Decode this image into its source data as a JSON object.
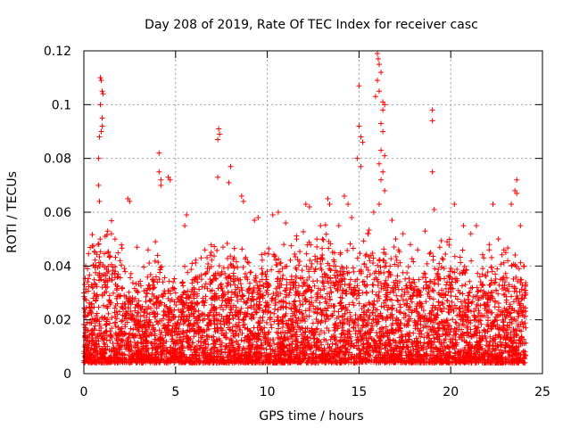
{
  "chart_data": {
    "type": "scatter",
    "title": "Day 208 of 2019, Rate Of TEC Index for receiver casc",
    "xlabel": "GPS time / hours",
    "ylabel": "ROTI / TECUs",
    "xlim": [
      0,
      25
    ],
    "ylim": [
      0,
      0.12
    ],
    "xticks": [
      0,
      5,
      10,
      15,
      20,
      25
    ],
    "yticks": [
      0,
      0.02,
      0.04,
      0.06,
      0.08,
      0.1,
      0.12
    ],
    "grid": true,
    "marker": "+",
    "color": "#ff0000",
    "series": [
      {
        "values_note_removed": true,
        "points": [
          [
            0.9,
            0.11
          ],
          [
            0.95,
            0.109
          ],
          [
            1.0,
            0.105
          ],
          [
            1.05,
            0.104
          ],
          [
            0.9,
            0.1
          ],
          [
            1.0,
            0.095
          ],
          [
            1.0,
            0.092
          ],
          [
            0.95,
            0.09
          ],
          [
            0.85,
            0.088
          ],
          [
            0.8,
            0.08
          ],
          [
            0.8,
            0.07
          ],
          [
            0.85,
            0.064
          ],
          [
            4.1,
            0.082
          ],
          [
            4.1,
            0.075
          ],
          [
            4.2,
            0.072
          ],
          [
            4.6,
            0.073
          ],
          [
            4.7,
            0.072
          ],
          [
            4.2,
            0.07
          ],
          [
            7.35,
            0.091
          ],
          [
            7.4,
            0.089
          ],
          [
            7.3,
            0.087
          ],
          [
            7.3,
            0.073
          ],
          [
            8.0,
            0.077
          ],
          [
            7.9,
            0.071
          ],
          [
            8.6,
            0.066
          ],
          [
            8.7,
            0.064
          ],
          [
            2.4,
            0.065
          ],
          [
            2.5,
            0.064
          ],
          [
            5.6,
            0.059
          ],
          [
            5.5,
            0.055
          ],
          [
            15.0,
            0.107
          ],
          [
            15.0,
            0.092
          ],
          [
            15.1,
            0.088
          ],
          [
            15.2,
            0.086
          ],
          [
            14.9,
            0.08
          ],
          [
            15.1,
            0.077
          ],
          [
            16.0,
            0.119
          ],
          [
            16.05,
            0.117
          ],
          [
            16.1,
            0.115
          ],
          [
            16.2,
            0.112
          ],
          [
            16.0,
            0.109
          ],
          [
            16.1,
            0.105
          ],
          [
            15.9,
            0.103
          ],
          [
            16.3,
            0.101
          ],
          [
            16.4,
            0.1
          ],
          [
            16.3,
            0.098
          ],
          [
            16.2,
            0.093
          ],
          [
            16.3,
            0.09
          ],
          [
            16.2,
            0.083
          ],
          [
            16.4,
            0.081
          ],
          [
            16.1,
            0.078
          ],
          [
            16.3,
            0.075
          ],
          [
            16.2,
            0.072
          ],
          [
            16.4,
            0.068
          ],
          [
            16.1,
            0.063
          ],
          [
            15.8,
            0.06
          ],
          [
            19.0,
            0.098
          ],
          [
            19.0,
            0.094
          ],
          [
            19.0,
            0.075
          ],
          [
            19.1,
            0.061
          ],
          [
            20.2,
            0.063
          ],
          [
            22.3,
            0.063
          ],
          [
            23.3,
            0.063
          ],
          [
            23.6,
            0.072
          ],
          [
            23.5,
            0.068
          ],
          [
            23.6,
            0.067
          ],
          [
            12.1,
            0.063
          ],
          [
            12.3,
            0.062
          ],
          [
            13.3,
            0.065
          ],
          [
            13.4,
            0.063
          ],
          [
            11.0,
            0.056
          ],
          [
            10.3,
            0.059
          ],
          [
            6.6,
            0.046
          ],
          [
            3.5,
            0.046
          ],
          [
            9.3,
            0.057
          ],
          [
            9.5,
            0.058
          ],
          [
            10.6,
            0.06
          ],
          [
            14.2,
            0.066
          ],
          [
            14.4,
            0.063
          ],
          [
            17.4,
            0.052
          ],
          [
            17.8,
            0.048
          ],
          [
            18.6,
            0.053
          ],
          [
            18.9,
            0.045
          ],
          [
            21.1,
            0.052
          ],
          [
            21.4,
            0.055
          ],
          [
            22.6,
            0.05
          ],
          [
            22.9,
            0.046
          ],
          [
            0.1,
            0.04
          ],
          [
            0.2,
            0.039
          ],
          [
            1.3,
            0.053
          ],
          [
            1.5,
            0.052
          ],
          [
            1.7,
            0.05
          ],
          [
            2.9,
            0.047
          ],
          [
            3.9,
            0.049
          ],
          [
            5.9,
            0.041
          ],
          [
            6.9,
            0.044
          ],
          [
            11.6,
            0.05
          ],
          [
            12.7,
            0.05
          ],
          [
            13.9,
            0.055
          ],
          [
            15.5,
            0.052
          ],
          [
            16.8,
            0.057
          ],
          [
            17.0,
            0.05
          ],
          [
            18.2,
            0.046
          ],
          [
            19.4,
            0.047
          ],
          [
            19.8,
            0.049
          ],
          [
            20.7,
            0.055
          ],
          [
            21.8,
            0.043
          ],
          [
            22.1,
            0.048
          ],
          [
            23.0,
            0.045
          ],
          [
            23.8,
            0.055
          ],
          [
            24.0,
            0.04
          ],
          [
            14.6,
            0.058
          ],
          [
            12.9,
            0.055
          ],
          [
            10.9,
            0.048
          ],
          [
            0.0,
            0.03
          ],
          [
            0.5,
            0.028
          ],
          [
            1.2,
            0.032
          ],
          [
            2.0,
            0.029
          ],
          [
            3.0,
            0.027
          ],
          [
            4.0,
            0.034
          ],
          [
            5.0,
            0.03
          ],
          [
            6.0,
            0.028
          ],
          [
            7.0,
            0.031
          ],
          [
            8.0,
            0.033
          ],
          [
            9.0,
            0.03
          ],
          [
            10.0,
            0.032
          ],
          [
            11.0,
            0.031
          ],
          [
            12.0,
            0.034
          ],
          [
            13.0,
            0.036
          ],
          [
            14.0,
            0.033
          ],
          [
            15.0,
            0.031
          ],
          [
            16.0,
            0.035
          ],
          [
            17.0,
            0.032
          ],
          [
            18.0,
            0.03
          ],
          [
            19.0,
            0.031
          ],
          [
            20.0,
            0.033
          ],
          [
            21.0,
            0.03
          ],
          [
            22.0,
            0.029
          ],
          [
            23.0,
            0.031
          ],
          [
            24.0,
            0.028
          ]
        ]
      }
    ],
    "density_profile": {
      "x": [
        0,
        1,
        2,
        3,
        4,
        5,
        6,
        7,
        8,
        9,
        10,
        11,
        12,
        13,
        14,
        15,
        16,
        17,
        18,
        19,
        20,
        21,
        22,
        23,
        24
      ],
      "upper_envelope": [
        0.038,
        0.05,
        0.042,
        0.03,
        0.04,
        0.032,
        0.035,
        0.04,
        0.042,
        0.038,
        0.042,
        0.04,
        0.046,
        0.048,
        0.04,
        0.044,
        0.045,
        0.04,
        0.036,
        0.04,
        0.042,
        0.036,
        0.04,
        0.038,
        0.036
      ]
    }
  }
}
